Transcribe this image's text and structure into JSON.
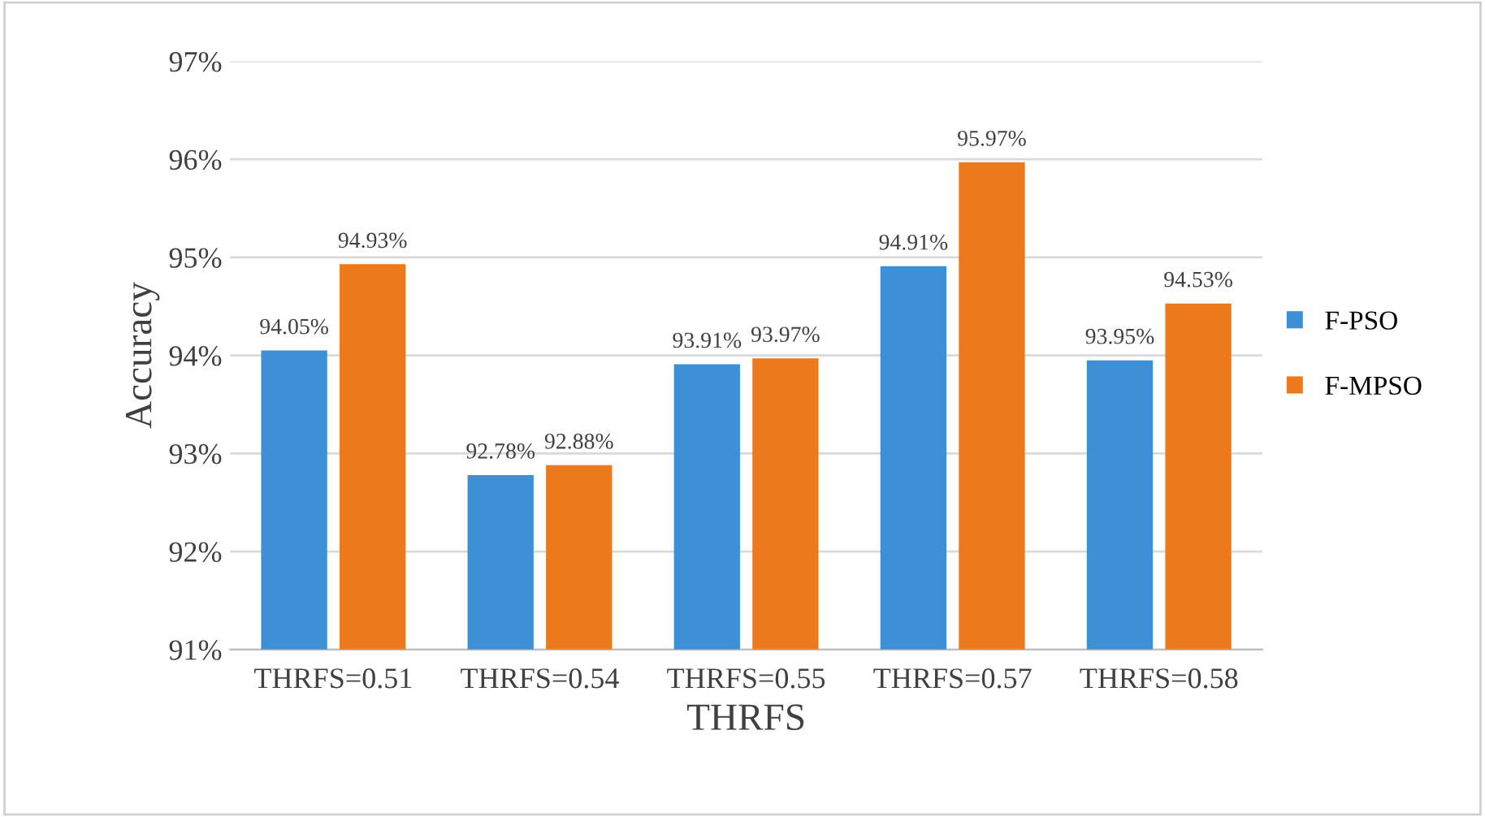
{
  "chart_data": {
    "type": "bar",
    "xlabel": "THRFS",
    "ylabel": "Accuracy",
    "categories": [
      "THRFS=0.51",
      "THRFS=0.54",
      "THRFS=0.55",
      "THRFS=0.57",
      "THRFS=0.58"
    ],
    "series": [
      {
        "name": "F-PSO",
        "color": "#3d8fd6",
        "values": [
          94.05,
          92.78,
          93.91,
          94.91,
          93.95
        ],
        "value_labels": [
          "94.05%",
          "92.78%",
          "93.91%",
          "94.91%",
          "93.95%"
        ]
      },
      {
        "name": "F-MPSO",
        "color": "#ec7a1c",
        "values": [
          94.93,
          92.88,
          93.97,
          95.97,
          94.53
        ],
        "value_labels": [
          "94.93%",
          "92.88%",
          "93.97%",
          "95.97%",
          "94.53%"
        ]
      }
    ],
    "ylim": [
      91,
      97
    ],
    "yticks": [
      {
        "value": 91,
        "label": "91%"
      },
      {
        "value": 92,
        "label": "92%"
      },
      {
        "value": 93,
        "label": "93%"
      },
      {
        "value": 94,
        "label": "94%"
      },
      {
        "value": 95,
        "label": "95%"
      },
      {
        "value": 96,
        "label": "96%"
      },
      {
        "value": 97,
        "label": "97%"
      }
    ],
    "grid": "y",
    "legend": "right"
  }
}
